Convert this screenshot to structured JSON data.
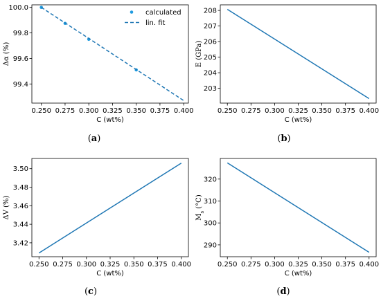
{
  "chart_data": [
    {
      "id": "a",
      "type": "scatter",
      "caption": "(a)",
      "xlabel": "C (wt%)",
      "ylabel": "Δα (%)",
      "xlim": [
        0.24,
        0.405
      ],
      "ylim": [
        99.25,
        100.02
      ],
      "xticks": [
        0.25,
        0.275,
        0.3,
        0.325,
        0.35,
        0.375,
        0.4
      ],
      "xtick_labels": [
        "0.250",
        "0.275",
        "0.300",
        "0.325",
        "0.350",
        "0.375",
        "0.400"
      ],
      "yticks": [
        99.4,
        99.6,
        99.8,
        100.0
      ],
      "ytick_labels": [
        "99.4",
        "99.6",
        "99.8",
        "100.0"
      ],
      "legend": "top-right",
      "series": [
        {
          "name": "calculated",
          "kind": "points",
          "color": "#1f9be0",
          "x": [
            0.25,
            0.275,
            0.3,
            0.35
          ],
          "y": [
            100.0,
            99.875,
            99.75,
            99.51
          ]
        },
        {
          "name": "lin. fit",
          "kind": "dashed-line",
          "color": "#1f77b4",
          "x": [
            0.25,
            0.4
          ],
          "y": [
            100.0,
            99.27
          ]
        }
      ]
    },
    {
      "id": "b",
      "type": "line",
      "caption": "(b)",
      "xlabel": "C (wt%)",
      "ylabel": "E (GPa)",
      "xlim": [
        0.2425,
        0.4075
      ],
      "ylim": [
        202.05,
        208.36
      ],
      "xticks": [
        0.25,
        0.275,
        0.3,
        0.325,
        0.35,
        0.375,
        0.4
      ],
      "xtick_labels": [
        "0.250",
        "0.275",
        "0.300",
        "0.325",
        "0.350",
        "0.375",
        "0.400"
      ],
      "yticks": [
        203,
        204,
        205,
        206,
        207,
        208
      ],
      "ytick_labels": [
        "203",
        "204",
        "205",
        "206",
        "207",
        "208"
      ],
      "series": [
        {
          "kind": "line",
          "color": "#1f77b4",
          "x": [
            0.25,
            0.4
          ],
          "y": [
            208.07,
            202.34
          ]
        }
      ]
    },
    {
      "id": "c",
      "type": "line",
      "caption": "(c)",
      "xlabel": "C (wt%)",
      "ylabel": "ΔV (%)",
      "xlim": [
        0.2425,
        0.4075
      ],
      "ylim": [
        3.405,
        3.511
      ],
      "xticks": [
        0.25,
        0.275,
        0.3,
        0.325,
        0.35,
        0.375,
        0.4
      ],
      "xtick_labels": [
        "0.250",
        "0.275",
        "0.300",
        "0.325",
        "0.350",
        "0.375",
        "0.400"
      ],
      "yticks": [
        3.42,
        3.44,
        3.46,
        3.48,
        3.5
      ],
      "ytick_labels": [
        "3.42",
        "3.44",
        "3.46",
        "3.48",
        "3.50"
      ],
      "series": [
        {
          "kind": "line",
          "color": "#1f77b4",
          "x": [
            0.25,
            0.4
          ],
          "y": [
            3.409,
            3.506
          ]
        }
      ]
    },
    {
      "id": "d",
      "type": "line",
      "caption": "(d)",
      "xlabel": "C (wt%)",
      "ylabel": "M",
      "ylabel_sub": "s",
      "ylabel_rest": " (°C)",
      "xlim": [
        0.2425,
        0.4075
      ],
      "ylim": [
        284.6,
        329.4
      ],
      "xticks": [
        0.25,
        0.275,
        0.3,
        0.325,
        0.35,
        0.375,
        0.4
      ],
      "xtick_labels": [
        "0.250",
        "0.275",
        "0.300",
        "0.325",
        "0.350",
        "0.375",
        "0.400"
      ],
      "yticks": [
        290,
        300,
        310,
        320
      ],
      "ytick_labels": [
        "290",
        "300",
        "310",
        "320"
      ],
      "series": [
        {
          "kind": "line",
          "color": "#1f77b4",
          "x": [
            0.25,
            0.4
          ],
          "y": [
            327.4,
            286.6
          ]
        }
      ]
    }
  ]
}
